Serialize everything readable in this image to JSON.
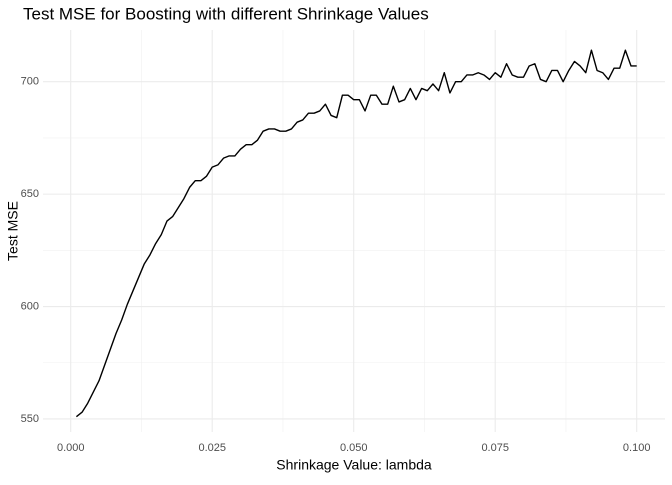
{
  "chart_data": {
    "type": "line",
    "title": "Test MSE for Boosting with different Shrinkage Values",
    "x_label": "Shrinkage Value:  lambda",
    "y_label": "Test MSE",
    "color": "#000000",
    "grid": true,
    "minor_grid": true,
    "x": [
      0.001,
      0.002,
      0.003,
      0.004,
      0.005,
      0.006,
      0.007,
      0.008,
      0.009,
      0.01,
      0.011,
      0.012,
      0.013,
      0.014,
      0.015,
      0.016,
      0.017,
      0.018,
      0.019,
      0.02,
      0.021,
      0.022,
      0.023,
      0.024,
      0.025,
      0.026,
      0.027,
      0.028,
      0.029,
      0.03,
      0.031,
      0.032,
      0.033,
      0.034,
      0.035,
      0.036,
      0.037,
      0.038,
      0.039,
      0.04,
      0.041,
      0.042,
      0.043,
      0.044,
      0.045,
      0.046,
      0.047,
      0.048,
      0.049,
      0.05,
      0.051,
      0.052,
      0.053,
      0.054,
      0.055,
      0.056,
      0.057,
      0.058,
      0.059,
      0.06,
      0.061,
      0.062,
      0.063,
      0.064,
      0.065,
      0.066,
      0.067,
      0.068,
      0.069,
      0.07,
      0.071,
      0.072,
      0.073,
      0.074,
      0.075,
      0.076,
      0.077,
      0.078,
      0.079,
      0.08,
      0.081,
      0.082,
      0.083,
      0.084,
      0.085,
      0.086,
      0.087,
      0.088,
      0.089,
      0.09,
      0.091,
      0.092,
      0.093,
      0.094,
      0.095,
      0.096,
      0.097,
      0.098,
      0.099,
      0.1
    ],
    "values": [
      551,
      553,
      557,
      562,
      567,
      574,
      581,
      588,
      594,
      601,
      607,
      613,
      619,
      623,
      628,
      632,
      638,
      640,
      644,
      648,
      653,
      656,
      656,
      658,
      662,
      663,
      666,
      667,
      667,
      670,
      672,
      672,
      674,
      678,
      679,
      679,
      678,
      678,
      679,
      682,
      683,
      686,
      686,
      687,
      690,
      685,
      684,
      694,
      694,
      692,
      692,
      687,
      694,
      694,
      690,
      690,
      698,
      691,
      692,
      697,
      692,
      697,
      696,
      699,
      696,
      704,
      695,
      700,
      700,
      703,
      703,
      704,
      703,
      701,
      704,
      702,
      708,
      703,
      702,
      702,
      707,
      708,
      701,
      700,
      705,
      705,
      700,
      705,
      709,
      707,
      704,
      714,
      705,
      704,
      701,
      706,
      706,
      714,
      707,
      707
    ],
    "xlim": [
      -0.0049,
      0.105
    ],
    "ylim": [
      544.2,
      723
    ],
    "xticks": [
      {
        "value": 0,
        "label": "0.000"
      },
      {
        "value": 0.025,
        "label": "0.025"
      },
      {
        "value": 0.05,
        "label": "0.050"
      },
      {
        "value": 0.075,
        "label": "0.075"
      },
      {
        "value": 0.1,
        "label": "0.100"
      }
    ],
    "yticks": [
      550,
      600,
      650,
      700
    ]
  }
}
